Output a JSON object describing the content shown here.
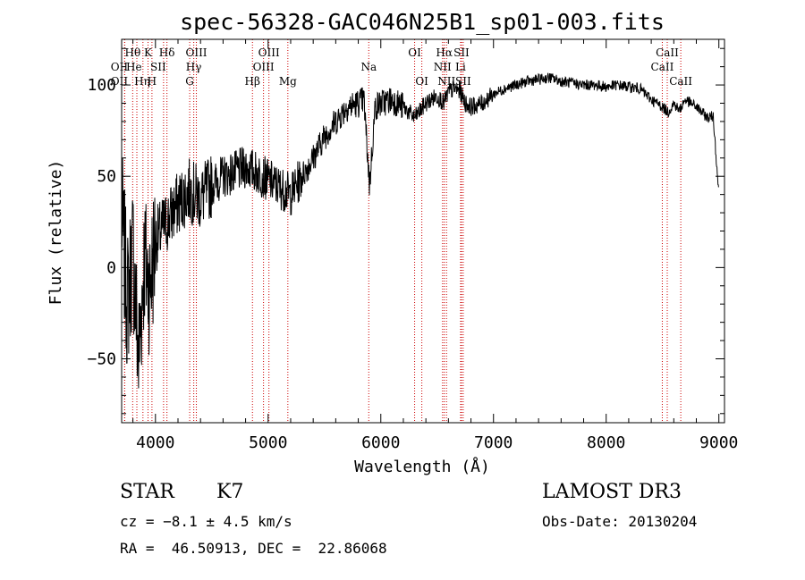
{
  "chart_data": {
    "type": "line",
    "title": "spec-56328-GAC046N25B1_sp01-003.fits",
    "xlabel": "Wavelength (Å)",
    "ylabel": "Flux (relative)",
    "xlim": [
      3700,
      9050
    ],
    "ylim": [
      -85,
      125
    ],
    "xticks": [
      4000,
      5000,
      6000,
      7000,
      8000,
      9000
    ],
    "yticks": [
      -50,
      0,
      50,
      100
    ],
    "series": [
      {
        "name": "flux",
        "color": "#000000",
        "anchors": [
          [
            3700,
            30
          ],
          [
            3750,
            -20
          ],
          [
            3800,
            10
          ],
          [
            3850,
            -50
          ],
          [
            3900,
            5
          ],
          [
            3950,
            -10
          ],
          [
            4000,
            15
          ],
          [
            4100,
            25
          ],
          [
            4200,
            35
          ],
          [
            4300,
            42
          ],
          [
            4400,
            38
          ],
          [
            4500,
            45
          ],
          [
            4600,
            50
          ],
          [
            4700,
            52
          ],
          [
            4800,
            55
          ],
          [
            4900,
            52
          ],
          [
            5000,
            48
          ],
          [
            5100,
            44
          ],
          [
            5200,
            40
          ],
          [
            5300,
            50
          ],
          [
            5400,
            60
          ],
          [
            5500,
            72
          ],
          [
            5600,
            80
          ],
          [
            5700,
            88
          ],
          [
            5800,
            90
          ],
          [
            5850,
            92
          ],
          [
            5900,
            45
          ],
          [
            5950,
            88
          ],
          [
            6000,
            90
          ],
          [
            6100,
            92
          ],
          [
            6200,
            88
          ],
          [
            6300,
            82
          ],
          [
            6400,
            90
          ],
          [
            6500,
            94
          ],
          [
            6560,
            90
          ],
          [
            6600,
            96
          ],
          [
            6650,
            98
          ],
          [
            6700,
            97
          ],
          [
            6750,
            90
          ],
          [
            6800,
            88
          ],
          [
            6900,
            90
          ],
          [
            7000,
            95
          ],
          [
            7100,
            98
          ],
          [
            7200,
            100
          ],
          [
            7300,
            102
          ],
          [
            7400,
            103
          ],
          [
            7500,
            104
          ],
          [
            7600,
            102
          ],
          [
            7700,
            101
          ],
          [
            7800,
            100
          ],
          [
            7900,
            100
          ],
          [
            8000,
            99
          ],
          [
            8100,
            100
          ],
          [
            8200,
            99
          ],
          [
            8300,
            98
          ],
          [
            8400,
            92
          ],
          [
            8500,
            88
          ],
          [
            8550,
            85
          ],
          [
            8600,
            90
          ],
          [
            8650,
            86
          ],
          [
            8700,
            92
          ],
          [
            8800,
            88
          ],
          [
            8900,
            82
          ],
          [
            8950,
            83
          ],
          [
            9000,
            40
          ]
        ]
      }
    ],
    "lines": [
      {
        "label": "Hθ",
        "x": 3798,
        "row": 1,
        "dx": 0
      },
      {
        "label": "OII",
        "x": 3727,
        "row": 2,
        "dx": -6
      },
      {
        "label": "OII",
        "x": 3727,
        "row": 3,
        "dx": -6
      },
      {
        "label": "He",
        "x": 3889,
        "row": 2,
        "dx": -10
      },
      {
        "label": "Hη",
        "x": 3835,
        "row": 3,
        "dx": 6
      },
      {
        "label": "K",
        "x": 3934,
        "row": 1,
        "dx": 0
      },
      {
        "label": "H",
        "x": 3969,
        "row": 3,
        "dx": 0
      },
      {
        "label": "SII",
        "x": 4072,
        "row": 2,
        "dx": -6
      },
      {
        "label": "Hδ",
        "x": 4102,
        "row": 1,
        "dx": 0
      },
      {
        "label": "OIII",
        "x": 4363,
        "row": 1,
        "dx": 0
      },
      {
        "label": "Hγ",
        "x": 4340,
        "row": 2,
        "dx": 0
      },
      {
        "label": "G",
        "x": 4304,
        "row": 3,
        "dx": 0
      },
      {
        "label": "Hβ",
        "x": 4861,
        "row": 3,
        "dx": 0
      },
      {
        "label": "OIII",
        "x": 4959,
        "row": 2,
        "dx": 0
      },
      {
        "label": "OIII",
        "x": 5007,
        "row": 1,
        "dx": 0
      },
      {
        "label": "Mg",
        "x": 5175,
        "row": 3,
        "dx": 0
      },
      {
        "label": "Na",
        "x": 5893,
        "row": 2,
        "dx": 0
      },
      {
        "label": "OI",
        "x": 6300,
        "row": 1,
        "dx": 0
      },
      {
        "label": "OI",
        "x": 6364,
        "row": 3,
        "dx": 0
      },
      {
        "label": "Hα",
        "x": 6563,
        "row": 1,
        "dx": 0
      },
      {
        "label": "NII",
        "x": 6548,
        "row": 2,
        "dx": 0
      },
      {
        "label": "NII",
        "x": 6583,
        "row": 3,
        "dx": 0
      },
      {
        "label": "SII",
        "x": 6716,
        "row": 1,
        "dx": 0
      },
      {
        "label": "Li",
        "x": 6708,
        "row": 2,
        "dx": 0
      },
      {
        "label": "SII",
        "x": 6731,
        "row": 3,
        "dx": 0
      },
      {
        "label": "CaII",
        "x": 8542,
        "row": 1,
        "dx": 0
      },
      {
        "label": "CaII",
        "x": 8498,
        "row": 2,
        "dx": 0
      },
      {
        "label": "CaII",
        "x": 8662,
        "row": 3,
        "dx": 0
      }
    ],
    "line_color": "#cc0000"
  },
  "info": {
    "object_type": "STAR",
    "subclass": "K7",
    "survey": "LAMOST DR3",
    "cz": "cz = −8.1 ± 4.5 km/s",
    "obs_date": "Obs-Date: 20130204",
    "coords": "RA =  46.50913, DEC =  22.86068"
  }
}
